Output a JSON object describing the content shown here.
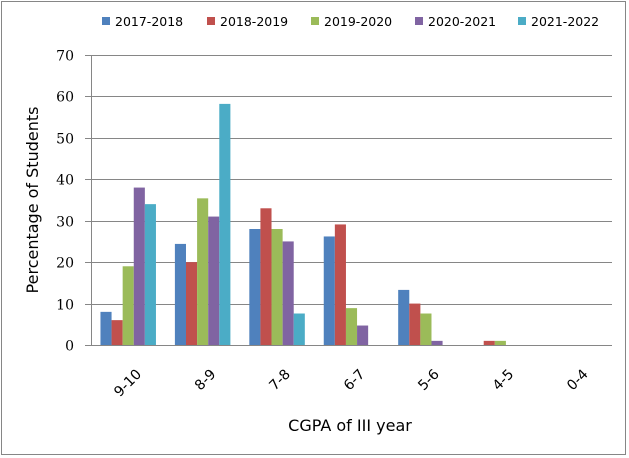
{
  "chart_data": {
    "type": "bar",
    "title": "",
    "xlabel": "CGPA of III year",
    "ylabel": "Percentage of Students",
    "ylim": [
      0,
      70
    ],
    "yticks": [
      0,
      10,
      20,
      30,
      40,
      50,
      60,
      70
    ],
    "grid": true,
    "legend_position": "top",
    "categories": [
      "9-10",
      "8-9",
      "7-8",
      "6-7",
      "5-6",
      "4-5",
      "0-4"
    ],
    "series": [
      {
        "name": "2017-2018",
        "color": "#4F81BD",
        "values": [
          8,
          24.4,
          28,
          26.2,
          13.3,
          0,
          0
        ]
      },
      {
        "name": "2018-2019",
        "color": "#C0504D",
        "values": [
          6,
          20,
          33,
          29.1,
          10,
          1,
          0
        ]
      },
      {
        "name": "2019-2020",
        "color": "#9BBB59",
        "values": [
          19,
          35.4,
          28,
          8.9,
          7.6,
          1,
          0
        ]
      },
      {
        "name": "2020-2021",
        "color": "#8064A2",
        "values": [
          38,
          31,
          25,
          4.7,
          1,
          0,
          0
        ]
      },
      {
        "name": "2021-2022",
        "color": "#4BACC6",
        "values": [
          34,
          58.2,
          7.6,
          0,
          0,
          0,
          0
        ]
      }
    ]
  }
}
